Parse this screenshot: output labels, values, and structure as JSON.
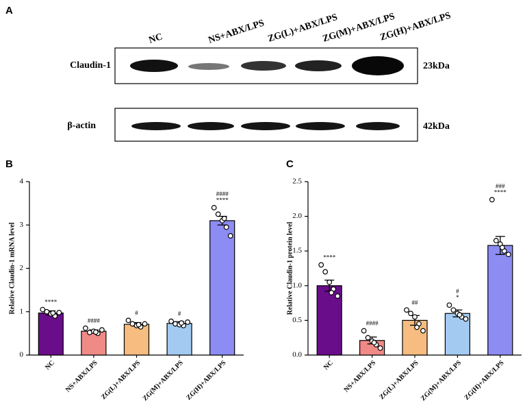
{
  "blot": {
    "panel_label": "A",
    "lanes": [
      "NC",
      "NS+ABX/LPS",
      "ZG(L)+ABX/LPS",
      "ZG(M)+ABX/LPS",
      "ZG(H)+ABX/LPS"
    ],
    "rows": [
      {
        "protein": "Claudin-1",
        "size": "23kDa"
      },
      {
        "protein": "β-actin",
        "size": "42kDa"
      }
    ]
  },
  "chart_data": [
    {
      "type": "bar",
      "panel_label": "B",
      "y_label": "Relative Claudin-1 mRNA level",
      "categories": [
        "NC",
        "NS+ABX/LPS",
        "ZG(L)+ABX/LPS",
        "ZG(M)+ABX/LPS",
        "ZG(H)+ABX/LPS"
      ],
      "values": [
        0.97,
        0.55,
        0.71,
        0.73,
        3.1
      ],
      "errors": [
        0.05,
        0.03,
        0.04,
        0.04,
        0.1
      ],
      "points": [
        [
          1.05,
          1.0,
          0.95,
          0.9,
          0.98,
          0.97
        ],
        [
          0.62,
          0.52,
          0.55,
          0.5,
          0.58,
          0.53
        ],
        [
          0.8,
          0.72,
          0.68,
          0.65,
          0.72,
          0.7
        ],
        [
          0.78,
          0.72,
          0.7,
          0.68,
          0.76,
          0.74
        ],
        [
          3.4,
          3.25,
          3.1,
          2.95,
          2.75,
          3.15
        ]
      ],
      "annotations": [
        [
          "****"
        ],
        [
          "####"
        ],
        [
          "#"
        ],
        [
          "#"
        ],
        [
          "####",
          "****"
        ]
      ],
      "colors": [
        "#6a0d8a",
        "#f08a86",
        "#f6bc80",
        "#a3cbf2",
        "#8d8cf2"
      ],
      "ylim": [
        0,
        4
      ],
      "yticks": [
        0,
        1,
        2,
        3,
        4
      ]
    },
    {
      "type": "bar",
      "panel_label": "C",
      "y_label": "Relative Claudin-1 protein level",
      "categories": [
        "NC",
        "NS+ABX/LPS",
        "ZG(L)+ABX/LPS",
        "ZG(M)+ABX/LPS",
        "ZG(H)+ABX/LPS"
      ],
      "values": [
        1.0,
        0.21,
        0.5,
        0.6,
        1.58
      ],
      "errors": [
        0.08,
        0.05,
        0.07,
        0.05,
        0.13
      ],
      "points": [
        [
          1.3,
          1.2,
          1.05,
          0.95,
          0.85,
          0.9
        ],
        [
          0.35,
          0.25,
          0.2,
          0.15,
          0.1,
          0.18
        ],
        [
          0.65,
          0.6,
          0.55,
          0.45,
          0.35,
          0.4
        ],
        [
          0.72,
          0.65,
          0.6,
          0.55,
          0.52,
          0.58
        ],
        [
          2.24,
          1.65,
          1.6,
          1.5,
          1.45,
          1.55
        ]
      ],
      "annotations": [
        [
          "****"
        ],
        [
          "####"
        ],
        [
          "##"
        ],
        [
          "#",
          "*"
        ],
        [
          "###",
          "****"
        ]
      ],
      "colors": [
        "#6a0d8a",
        "#f08a86",
        "#f6bc80",
        "#a3cbf2",
        "#8d8cf2"
      ],
      "ylim": [
        0,
        2.5
      ],
      "yticks": [
        {
          "value": 0,
          "label": "0.0"
        },
        {
          "value": 0.5,
          "label": "0.5"
        },
        {
          "value": 1,
          "label": "1.0"
        },
        {
          "value": 1.5,
          "label": "1.5"
        },
        {
          "value": 2,
          "label": "2.0"
        },
        {
          "value": 2.5,
          "label": "2.5"
        }
      ]
    }
  ]
}
